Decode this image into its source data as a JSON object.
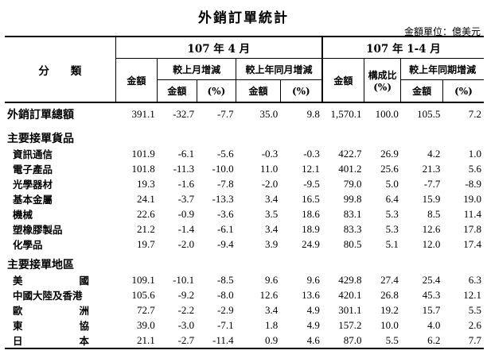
{
  "title": "外銷訂單統計",
  "unit": "金額單位：億美元",
  "header": {
    "category": "分　　類",
    "period1": "107 年 4 月",
    "period2": "107 年 1-4 月",
    "amount": "金額",
    "mom": "較上月增減",
    "yoy": "較上年同月增減",
    "share": "構成比",
    "share_unit": "(%)",
    "ytd_yoy": "較上年同期增減",
    "sub_amount": "金額",
    "pct": "(%)"
  },
  "total": {
    "label": "外銷訂單總額",
    "values": [
      "391.1",
      "-32.7",
      "-7.7",
      "35.0",
      "9.8",
      "1,570.1",
      "100.0",
      "105.5",
      "7.2"
    ]
  },
  "goods": {
    "heading": "主要接單貨品",
    "rows": [
      {
        "label": "資訊通信",
        "values": [
          "101.9",
          "-6.1",
          "-5.6",
          "-0.3",
          "-0.3",
          "422.7",
          "26.9",
          "4.2",
          "1.0"
        ]
      },
      {
        "label": "電子產品",
        "values": [
          "101.8",
          "-11.3",
          "-10.0",
          "11.0",
          "12.1",
          "401.2",
          "25.6",
          "21.3",
          "5.6"
        ]
      },
      {
        "label": "光學器材",
        "values": [
          "19.3",
          "-1.6",
          "-7.8",
          "-2.0",
          "-9.5",
          "79.0",
          "5.0",
          "-7.7",
          "-8.9"
        ]
      },
      {
        "label": "基本金屬",
        "values": [
          "24.1",
          "-3.7",
          "-13.3",
          "3.4",
          "16.5",
          "99.8",
          "6.4",
          "15.9",
          "19.0"
        ]
      },
      {
        "label": "機械",
        "values": [
          "22.6",
          "-0.9",
          "-3.6",
          "3.5",
          "18.6",
          "83.1",
          "5.3",
          "8.5",
          "11.4"
        ]
      },
      {
        "label": "塑橡膠製品",
        "values": [
          "21.2",
          "-1.4",
          "-6.1",
          "3.4",
          "18.9",
          "83.3",
          "5.3",
          "12.6",
          "17.8"
        ]
      },
      {
        "label": "化學品",
        "values": [
          "19.7",
          "-2.0",
          "-9.4",
          "3.9",
          "24.9",
          "80.5",
          "5.1",
          "12.0",
          "17.4"
        ]
      }
    ]
  },
  "regions": {
    "heading": "主要接單地區",
    "rows": [
      {
        "label_a": "美",
        "label_b": "國",
        "values": [
          "109.1",
          "-10.1",
          "-8.5",
          "9.6",
          "9.6",
          "429.8",
          "27.4",
          "25.4",
          "6.3"
        ]
      },
      {
        "label": "中國大陸及香港",
        "values": [
          "105.6",
          "-9.2",
          "-8.0",
          "12.6",
          "13.6",
          "420.1",
          "26.8",
          "45.3",
          "12.1"
        ]
      },
      {
        "label_a": "歐",
        "label_b": "洲",
        "values": [
          "72.7",
          "-2.2",
          "-2.9",
          "3.4",
          "4.9",
          "301.1",
          "19.2",
          "15.7",
          "5.5"
        ]
      },
      {
        "label_a": "東",
        "label_b": "協",
        "values": [
          "39.0",
          "-3.0",
          "-7.1",
          "1.8",
          "4.9",
          "157.2",
          "10.0",
          "4.0",
          "2.6"
        ]
      },
      {
        "label_a": "日",
        "label_b": "本",
        "values": [
          "21.1",
          "-2.7",
          "-11.4",
          "0.9",
          "4.6",
          "87.0",
          "5.5",
          "6.2",
          "7.7"
        ]
      }
    ]
  }
}
